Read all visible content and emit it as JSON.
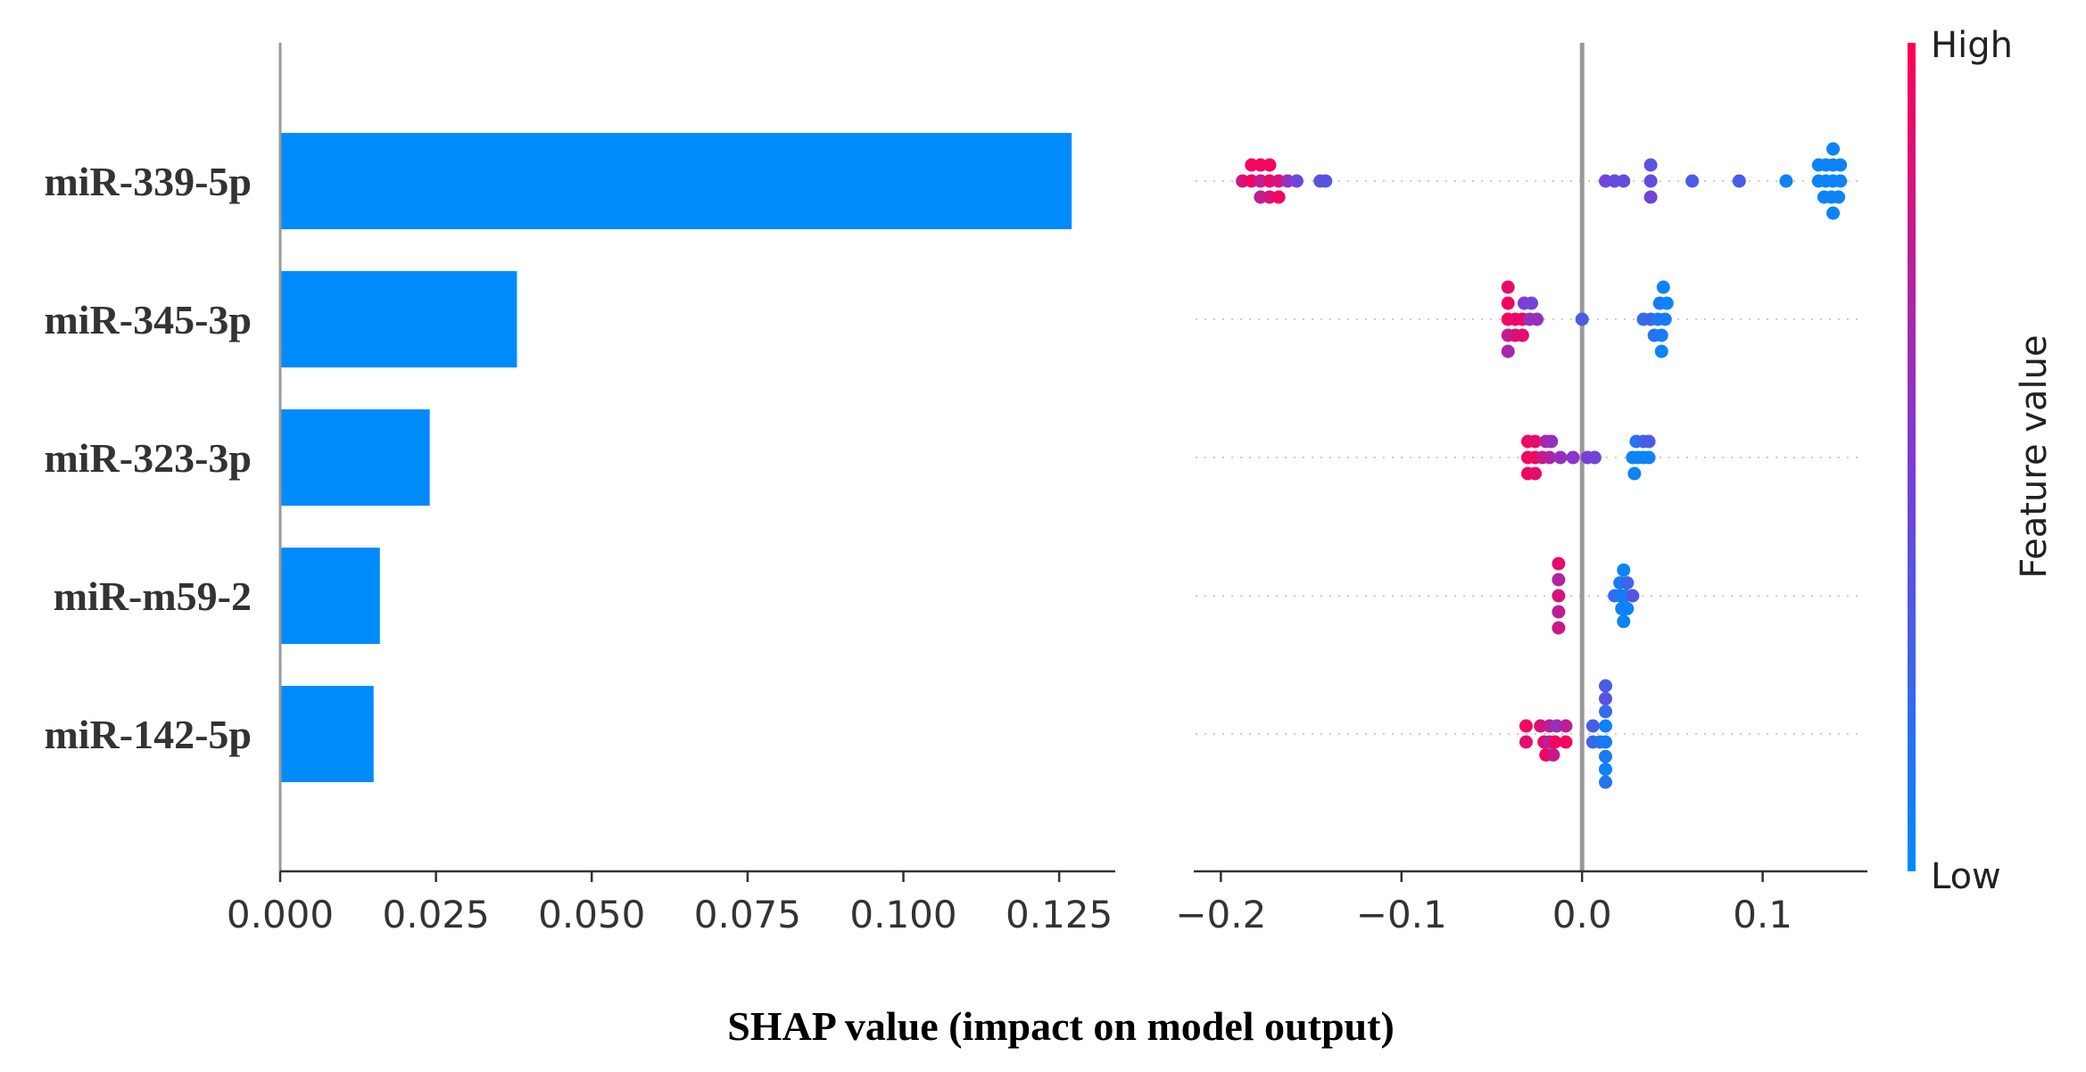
{
  "chart_data": {
    "type": "bar",
    "features": [
      "miR-339-5p",
      "miR-345-3p",
      "miR-323-3p",
      "miR-m59-2",
      "miR-142-5p"
    ],
    "xlabel": "SHAP value (impact on model output)",
    "bar": {
      "type": "bar",
      "orientation": "horizontal",
      "values": [
        0.127,
        0.038,
        0.024,
        0.016,
        0.015
      ],
      "xlim": [
        0,
        0.134
      ],
      "xticks": [
        0.0,
        0.025,
        0.05,
        0.075,
        0.1,
        0.125
      ],
      "xtick_labels": [
        "0.000",
        "0.025",
        "0.050",
        "0.075",
        "0.100",
        "0.125"
      ],
      "color": "#008bfb"
    },
    "beeswarm": {
      "type": "scatter",
      "xlim": [
        -0.215,
        0.158
      ],
      "xticks": [
        -0.2,
        -0.1,
        0.0,
        0.1
      ],
      "xtick_labels": [
        "−0.2",
        "−0.1",
        "0.0",
        "0.1"
      ],
      "colorbar": {
        "high_label": "High",
        "low_label": "Low",
        "title": "Feature value",
        "high_color": "#ff0052",
        "low_color": "#008bfb"
      },
      "points": [
        [
          {
            "x": -0.188,
            "o": 0,
            "c": 0.85
          },
          {
            "x": -0.183,
            "o": 0,
            "c": 0.95
          },
          {
            "x": -0.178,
            "o": 0,
            "c": 0.75
          },
          {
            "x": -0.173,
            "o": 0,
            "c": 0.9
          },
          {
            "x": -0.168,
            "o": 0,
            "c": 0.85
          },
          {
            "x": -0.163,
            "o": 0,
            "c": 0.6
          },
          {
            "x": -0.158,
            "o": 0,
            "c": 0.45
          },
          {
            "x": -0.145,
            "o": 0,
            "c": 0.35
          },
          {
            "x": -0.142,
            "o": 0,
            "c": 0.35
          },
          {
            "x": -0.183,
            "o": -1,
            "c": 0.95
          },
          {
            "x": -0.178,
            "o": -1,
            "c": 0.95
          },
          {
            "x": -0.173,
            "o": -1,
            "c": 0.95
          },
          {
            "x": -0.178,
            "o": 1,
            "c": 0.75
          },
          {
            "x": -0.173,
            "o": 1,
            "c": 0.85
          },
          {
            "x": -0.168,
            "o": 1,
            "c": 0.95
          },
          {
            "x": 0.013,
            "o": 0,
            "c": 0.45
          },
          {
            "x": 0.018,
            "o": 0,
            "c": 0.4
          },
          {
            "x": 0.023,
            "o": 0,
            "c": 0.4
          },
          {
            "x": 0.038,
            "o": 0,
            "c": 0.4
          },
          {
            "x": 0.038,
            "o": -1,
            "c": 0.35
          },
          {
            "x": 0.038,
            "o": 1,
            "c": 0.45
          },
          {
            "x": 0.061,
            "o": 0,
            "c": 0.3
          },
          {
            "x": 0.087,
            "o": 0,
            "c": 0.3
          },
          {
            "x": 0.113,
            "o": 0,
            "c": 0.05
          },
          {
            "x": 0.131,
            "o": 0,
            "c": 0.05
          },
          {
            "x": 0.135,
            "o": 0,
            "c": 0.05
          },
          {
            "x": 0.139,
            "o": 0,
            "c": 0.05
          },
          {
            "x": 0.143,
            "o": 0,
            "c": 0.05
          },
          {
            "x": 0.131,
            "o": -1,
            "c": 0.05
          },
          {
            "x": 0.135,
            "o": -1,
            "c": 0.05
          },
          {
            "x": 0.139,
            "o": -1,
            "c": 0.05
          },
          {
            "x": 0.143,
            "o": -1,
            "c": 0.05
          },
          {
            "x": 0.139,
            "o": -2,
            "c": 0.05
          },
          {
            "x": 0.134,
            "o": 1,
            "c": 0.05
          },
          {
            "x": 0.138,
            "o": 1,
            "c": 0.05
          },
          {
            "x": 0.142,
            "o": 1,
            "c": 0.05
          },
          {
            "x": 0.139,
            "o": 2,
            "c": 0.05
          }
        ],
        [
          {
            "x": -0.041,
            "o": -2,
            "c": 0.9
          },
          {
            "x": -0.041,
            "o": -1,
            "c": 0.95
          },
          {
            "x": -0.032,
            "o": -1,
            "c": 0.5
          },
          {
            "x": -0.028,
            "o": -1,
            "c": 0.45
          },
          {
            "x": -0.041,
            "o": 0,
            "c": 0.95
          },
          {
            "x": -0.037,
            "o": 0,
            "c": 0.9
          },
          {
            "x": -0.033,
            "o": 0,
            "c": 0.95
          },
          {
            "x": -0.029,
            "o": 0,
            "c": 0.6
          },
          {
            "x": -0.025,
            "o": 0,
            "c": 0.6
          },
          {
            "x": -0.041,
            "o": 1,
            "c": 0.75
          },
          {
            "x": -0.037,
            "o": 1,
            "c": 0.85
          },
          {
            "x": -0.033,
            "o": 1,
            "c": 0.9
          },
          {
            "x": -0.041,
            "o": 2,
            "c": 0.65
          },
          {
            "x": 0.0,
            "o": 0,
            "c": 0.3
          },
          {
            "x": 0.045,
            "o": -2,
            "c": 0.05
          },
          {
            "x": 0.043,
            "o": -1,
            "c": 0.1
          },
          {
            "x": 0.047,
            "o": -1,
            "c": 0.05
          },
          {
            "x": 0.034,
            "o": 0,
            "c": 0.2
          },
          {
            "x": 0.038,
            "o": 0,
            "c": 0.25
          },
          {
            "x": 0.042,
            "o": 0,
            "c": 0.1
          },
          {
            "x": 0.046,
            "o": 0,
            "c": 0.1
          },
          {
            "x": 0.04,
            "o": 1,
            "c": 0.15
          },
          {
            "x": 0.044,
            "o": 1,
            "c": 0.1
          },
          {
            "x": 0.044,
            "o": 2,
            "c": 0.05
          }
        ],
        [
          {
            "x": -0.03,
            "o": -1,
            "c": 0.95
          },
          {
            "x": -0.026,
            "o": -1,
            "c": 0.9
          },
          {
            "x": -0.02,
            "o": -1,
            "c": 0.7
          },
          {
            "x": -0.017,
            "o": -1,
            "c": 0.6
          },
          {
            "x": -0.03,
            "o": 0,
            "c": 0.95
          },
          {
            "x": -0.026,
            "o": 0,
            "c": 0.95
          },
          {
            "x": -0.022,
            "o": 0,
            "c": 0.8
          },
          {
            "x": -0.018,
            "o": 0,
            "c": 0.7
          },
          {
            "x": -0.012,
            "o": 0,
            "c": 0.6
          },
          {
            "x": -0.005,
            "o": 0,
            "c": 0.55
          },
          {
            "x": 0.003,
            "o": 0,
            "c": 0.5
          },
          {
            "x": 0.007,
            "o": 0,
            "c": 0.45
          },
          {
            "x": -0.03,
            "o": 1,
            "c": 0.95
          },
          {
            "x": -0.026,
            "o": 1,
            "c": 0.9
          },
          {
            "x": 0.03,
            "o": -1,
            "c": 0.15
          },
          {
            "x": 0.034,
            "o": -1,
            "c": 0.25
          },
          {
            "x": 0.037,
            "o": -1,
            "c": 0.3
          },
          {
            "x": 0.028,
            "o": 0,
            "c": 0.05
          },
          {
            "x": 0.031,
            "o": 0,
            "c": 0.05
          },
          {
            "x": 0.034,
            "o": 0,
            "c": 0.05
          },
          {
            "x": 0.037,
            "o": 0,
            "c": 0.05
          },
          {
            "x": 0.029,
            "o": 1,
            "c": 0.05
          }
        ],
        [
          {
            "x": -0.013,
            "o": -2,
            "c": 0.9
          },
          {
            "x": -0.013,
            "o": -1,
            "c": 0.7
          },
          {
            "x": -0.013,
            "o": 0,
            "c": 0.85
          },
          {
            "x": -0.013,
            "o": 1,
            "c": 0.75
          },
          {
            "x": -0.013,
            "o": 2,
            "c": 0.8
          },
          {
            "x": 0.023,
            "o": -1.6,
            "c": 0.05
          },
          {
            "x": 0.021,
            "o": -0.8,
            "c": 0.1
          },
          {
            "x": 0.025,
            "o": -0.8,
            "c": 0.25
          },
          {
            "x": 0.018,
            "o": 0,
            "c": 0.25
          },
          {
            "x": 0.021,
            "o": 0,
            "c": 0.1
          },
          {
            "x": 0.024,
            "o": 0,
            "c": 0.1
          },
          {
            "x": 0.028,
            "o": 0,
            "c": 0.35
          },
          {
            "x": 0.022,
            "o": 0.8,
            "c": 0.05
          },
          {
            "x": 0.025,
            "o": 0.8,
            "c": 0.05
          },
          {
            "x": 0.023,
            "o": 1.6,
            "c": 0.05
          }
        ],
        [
          {
            "x": -0.031,
            "o": -0.5,
            "c": 0.95
          },
          {
            "x": -0.031,
            "o": 0.5,
            "c": 0.9
          },
          {
            "x": -0.023,
            "o": -0.5,
            "c": 0.85
          },
          {
            "x": -0.018,
            "o": -0.5,
            "c": 0.75
          },
          {
            "x": -0.014,
            "o": -0.5,
            "c": 0.6
          },
          {
            "x": -0.009,
            "o": -0.5,
            "c": 0.75
          },
          {
            "x": -0.021,
            "o": 0.5,
            "c": 0.9
          },
          {
            "x": -0.018,
            "o": 0.5,
            "c": 0.7
          },
          {
            "x": -0.015,
            "o": 0.5,
            "c": 0.95
          },
          {
            "x": -0.009,
            "o": 0.5,
            "c": 0.95
          },
          {
            "x": -0.02,
            "o": 1.3,
            "c": 0.95
          },
          {
            "x": -0.016,
            "o": 1.3,
            "c": 0.8
          },
          {
            "x": 0.006,
            "o": -0.5,
            "c": 0.3
          },
          {
            "x": 0.006,
            "o": 0.5,
            "c": 0.25
          },
          {
            "x": 0.01,
            "o": 0.5,
            "c": 0.15
          },
          {
            "x": 0.013,
            "o": -3,
            "c": 0.3
          },
          {
            "x": 0.013,
            "o": -2.2,
            "c": 0.35
          },
          {
            "x": 0.013,
            "o": -1.4,
            "c": 0.2
          },
          {
            "x": 0.013,
            "o": -0.5,
            "c": 0.05
          },
          {
            "x": 0.013,
            "o": 0.5,
            "c": 0.1
          },
          {
            "x": 0.013,
            "o": 1.4,
            "c": 0.1
          },
          {
            "x": 0.013,
            "o": 2.2,
            "c": 0.05
          },
          {
            "x": 0.013,
            "o": 3,
            "c": 0.15
          }
        ]
      ]
    }
  }
}
